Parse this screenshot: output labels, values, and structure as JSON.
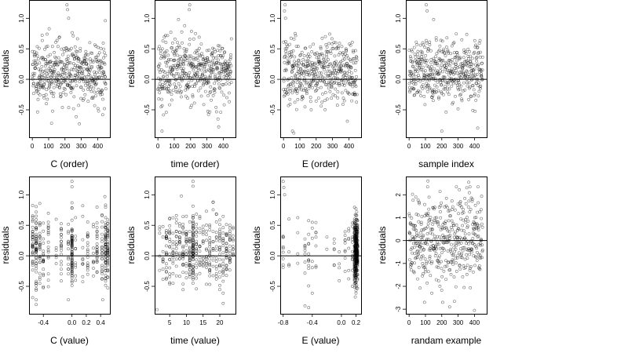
{
  "chart_data": [
    {
      "type": "scatter",
      "xlabel": "C (order)",
      "ylabel": "residuals",
      "xlim": [
        -20,
        475
      ],
      "ylim": [
        -0.95,
        1.3
      ],
      "xticks": [
        0,
        100,
        200,
        300,
        400
      ],
      "xtick_labels": [
        "0",
        "100",
        "200",
        "300",
        "400"
      ],
      "yticks": [
        -0.5,
        0.0,
        0.5,
        1.0
      ],
      "ytick_labels": [
        "-0.5",
        "0.0",
        "0.5",
        "1.0"
      ],
      "hline": 0,
      "pattern": {
        "kind": "index",
        "n": 450,
        "xmax": 450,
        "seed": 11
      },
      "outliers": [
        {
          "x": 212,
          "y": 1.22
        },
        {
          "x": 216,
          "y": 1.14
        },
        {
          "x": 222,
          "y": 1.0
        },
        {
          "x": 447,
          "y": 0.96
        },
        {
          "x": 118,
          "y": -0.72
        },
        {
          "x": 288,
          "y": -0.73
        }
      ]
    },
    {
      "type": "scatter",
      "xlabel": "time (order)",
      "ylabel": "residuals",
      "xlim": [
        -20,
        475
      ],
      "ylim": [
        -0.95,
        1.3
      ],
      "xticks": [
        0,
        100,
        200,
        300,
        400
      ],
      "xtick_labels": [
        "0",
        "100",
        "200",
        "300",
        "400"
      ],
      "yticks": [
        -0.5,
        0.0,
        0.5,
        1.0
      ],
      "ytick_labels": [
        "-0.5",
        "0.0",
        "0.5",
        "1.0"
      ],
      "hline": 0,
      "pattern": {
        "kind": "index",
        "n": 450,
        "xmax": 450,
        "seed": 23
      },
      "outliers": [
        {
          "x": 195,
          "y": 1.22
        },
        {
          "x": 192,
          "y": 1.14
        },
        {
          "x": 126,
          "y": 0.98
        },
        {
          "x": 25,
          "y": -0.85
        },
        {
          "x": 372,
          "y": -0.78
        }
      ]
    },
    {
      "type": "scatter",
      "xlabel": "E (order)",
      "ylabel": "residuals",
      "xlim": [
        -20,
        475
      ],
      "ylim": [
        -0.95,
        1.3
      ],
      "xticks": [
        0,
        100,
        200,
        300,
        400
      ],
      "xtick_labels": [
        "0",
        "100",
        "200",
        "300",
        "400"
      ],
      "yticks": [
        -0.5,
        0.0,
        0.5,
        1.0
      ],
      "ytick_labels": [
        "-0.5",
        "0.0",
        "0.5",
        "1.0"
      ],
      "hline": 0,
      "pattern": {
        "kind": "index",
        "n": 450,
        "xmax": 450,
        "seed": 37
      },
      "outliers": [
        {
          "x": 10,
          "y": 1.22
        },
        {
          "x": 6,
          "y": 1.12
        },
        {
          "x": 12,
          "y": 1.0
        },
        {
          "x": 55,
          "y": -0.85
        },
        {
          "x": 63,
          "y": -0.88
        }
      ]
    },
    {
      "type": "scatter",
      "xlabel": "sample index",
      "ylabel": "residuals",
      "xlim": [
        -20,
        475
      ],
      "ylim": [
        -0.95,
        1.3
      ],
      "xticks": [
        0,
        100,
        200,
        300,
        400
      ],
      "xtick_labels": [
        "0",
        "100",
        "200",
        "300",
        "400"
      ],
      "yticks": [
        -0.5,
        0.0,
        0.5,
        1.0
      ],
      "ytick_labels": [
        "-0.5",
        "0.0",
        "0.5",
        "1.0"
      ],
      "hline": 0,
      "pattern": {
        "kind": "index",
        "n": 450,
        "xmax": 450,
        "seed": 51
      },
      "outliers": [
        {
          "x": 105,
          "y": 1.22
        },
        {
          "x": 110,
          "y": 1.12
        },
        {
          "x": 150,
          "y": 0.98
        },
        {
          "x": 200,
          "y": -0.85
        },
        {
          "x": 420,
          "y": -0.8
        }
      ]
    },
    {
      "type": "scatter",
      "xlabel": "C (value)",
      "ylabel": "residuals",
      "xlim": [
        -0.6,
        0.53
      ],
      "ylim": [
        -0.95,
        1.3
      ],
      "xticks": [
        -0.4,
        0.0,
        0.2,
        0.4
      ],
      "xtick_labels": [
        "-0.4",
        "0.0",
        "0.2",
        "0.4"
      ],
      "yticks": [
        -0.5,
        0.0,
        0.5,
        1.0
      ],
      "ytick_labels": [
        "-0.5",
        "0.0",
        "0.5",
        "1.0"
      ],
      "hline": 0,
      "pattern": {
        "kind": "levels",
        "n": 450,
        "seed": 67,
        "levels": [
          -0.55,
          -0.5,
          -0.45,
          -0.4,
          -0.33,
          -0.22,
          -0.15,
          -0.05,
          0.0,
          0.05,
          0.15,
          0.22,
          0.3,
          0.35,
          0.42,
          0.47,
          0.5
        ],
        "weights": [
          2,
          3,
          2,
          2,
          1,
          1,
          2,
          2,
          7,
          1,
          1,
          2,
          1,
          2,
          2,
          4,
          3
        ]
      },
      "outliers": [
        {
          "x": 0.0,
          "y": 1.22
        },
        {
          "x": 0.0,
          "y": 1.13
        },
        {
          "x": 0.46,
          "y": 0.97
        },
        {
          "x": -0.5,
          "y": -0.8
        },
        {
          "x": 0.43,
          "y": -0.72
        }
      ]
    },
    {
      "type": "scatter",
      "xlabel": "time (value)",
      "ylabel": "residuals",
      "xlim": [
        0.5,
        24.7
      ],
      "ylim": [
        -0.95,
        1.3
      ],
      "xticks": [
        5,
        10,
        15,
        20
      ],
      "xtick_labels": [
        "5",
        "10",
        "15",
        "20"
      ],
      "yticks": [
        -0.5,
        0.0,
        0.5,
        1.0
      ],
      "ytick_labels": [
        "-0.5",
        "0.0",
        "0.5",
        "1.0"
      ],
      "hline": 0,
      "pattern": {
        "kind": "levels",
        "n": 450,
        "seed": 79,
        "levels": [
          2,
          3,
          4,
          5,
          6,
          7,
          8,
          9,
          10,
          11,
          12,
          13,
          14,
          15,
          16,
          17,
          18,
          19,
          20,
          21,
          22,
          23,
          24
        ],
        "weights": [
          1,
          1,
          2,
          2,
          2,
          2,
          2,
          2,
          2,
          3,
          6,
          2,
          2,
          2,
          2,
          2,
          2,
          2,
          2,
          2,
          2,
          2,
          1
        ]
      },
      "outliers": [
        {
          "x": 12,
          "y": 1.22
        },
        {
          "x": 12,
          "y": 1.14
        },
        {
          "x": 8.5,
          "y": 0.98
        },
        {
          "x": 1.2,
          "y": -0.88
        },
        {
          "x": 21,
          "y": -0.78
        }
      ]
    },
    {
      "type": "scatter",
      "xlabel": "E (value)",
      "ylabel": "residuals",
      "xlim": [
        -0.84,
        0.27
      ],
      "ylim": [
        -0.95,
        1.3
      ],
      "xticks": [
        -0.8,
        -0.4,
        0.0,
        0.2
      ],
      "xtick_labels": [
        "-0.8",
        "-0.4",
        "0.0",
        "0.2"
      ],
      "yticks": [
        -0.5,
        0.0,
        0.5,
        1.0
      ],
      "ytick_labels": [
        "-0.5",
        "0.0",
        "0.5",
        "1.0"
      ],
      "hline": 0,
      "pattern": {
        "kind": "levels",
        "n": 450,
        "seed": 93,
        "levels": [
          -0.8,
          -0.72,
          -0.6,
          -0.5,
          -0.45,
          -0.4,
          -0.35,
          -0.2,
          -0.1,
          -0.03,
          0.05,
          0.1,
          0.15,
          0.18,
          0.19,
          0.2,
          0.21,
          0.22
        ],
        "weights": [
          1,
          0.6,
          0.6,
          1,
          1.2,
          1,
          0.8,
          0.6,
          0.6,
          0.6,
          0.8,
          1,
          2,
          6,
          10,
          12,
          10,
          6
        ]
      },
      "outliers": [
        {
          "x": -0.8,
          "y": 1.22
        },
        {
          "x": -0.79,
          "y": 1.12
        },
        {
          "x": -0.78,
          "y": 1.0
        },
        {
          "x": -0.45,
          "y": -0.85
        },
        {
          "x": -0.5,
          "y": -0.82
        }
      ]
    },
    {
      "type": "scatter",
      "xlabel": "randam example",
      "ylabel": "residuals",
      "xlim": [
        -20,
        475
      ],
      "ylim": [
        -3.2,
        2.8
      ],
      "xticks": [
        0,
        100,
        200,
        300,
        400
      ],
      "xtick_labels": [
        "0",
        "100",
        "200",
        "300",
        "400"
      ],
      "yticks": [
        -3,
        -2,
        -1,
        0,
        1,
        2
      ],
      "ytick_labels": [
        "-3",
        "-2",
        "-1",
        "0",
        "1",
        "2"
      ],
      "hline": 0,
      "pattern": {
        "kind": "normal",
        "n": 450,
        "xmax": 450,
        "seed": 117,
        "sd": 0.95
      },
      "outliers": [
        {
          "x": 400,
          "y": -3.05
        },
        {
          "x": 248,
          "y": -2.9
        },
        {
          "x": 115,
          "y": 2.6
        },
        {
          "x": 365,
          "y": 2.55
        }
      ]
    }
  ]
}
